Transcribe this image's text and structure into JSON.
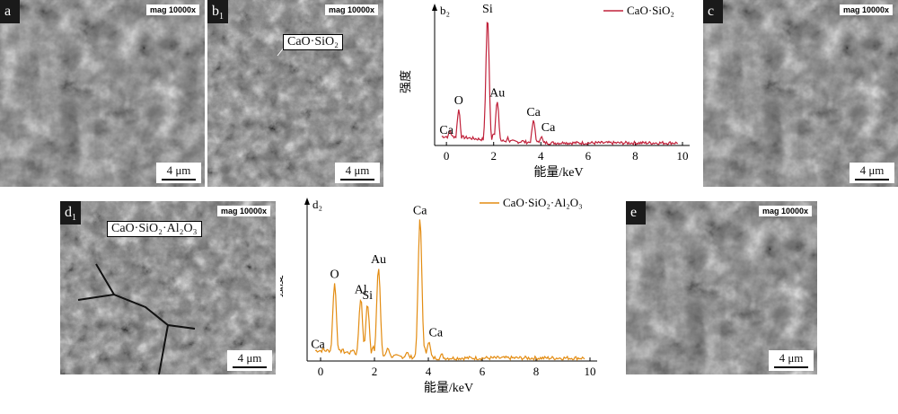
{
  "panels": {
    "a": {
      "label": "a",
      "mag": "mag 10000x",
      "scale": "4 μm"
    },
    "b1": {
      "label": "b",
      "label_sub": "1",
      "mag": "mag 10000x",
      "scale": "4 μm",
      "annotation": "CaO·SiO₂"
    },
    "c": {
      "label": "c",
      "mag": "mag 10000x",
      "scale": "4 μm"
    },
    "d1": {
      "label": "d",
      "label_sub": "1",
      "mag": "mag 10000x",
      "scale": "4 μm",
      "annotation": "CaO·SiO₂·Al₂O₃"
    },
    "e": {
      "label": "e",
      "mag": "mag 10000x",
      "scale": "4 μm"
    }
  },
  "chart_data": [
    {
      "type": "line",
      "panel_label": "b₂",
      "xlabel": "能量/keV",
      "ylabel": "强度",
      "xlim": [
        -0.5,
        10
      ],
      "xticks": [
        "0",
        "2",
        "4",
        "6",
        "8",
        "10"
      ],
      "legend": "CaO·SiO₂",
      "legend_position": "top-right",
      "color": "#c0213a",
      "series": [
        {
          "values": [
            [
              0.0,
              0.05
            ],
            [
              0.15,
              0.12
            ],
            [
              0.25,
              0.06
            ],
            [
              0.52,
              0.28
            ],
            [
              0.8,
              0.06
            ],
            [
              1.2,
              0.05
            ],
            [
              1.74,
              1.0
            ],
            [
              2.0,
              0.1
            ],
            [
              2.15,
              0.34
            ],
            [
              2.6,
              0.06
            ],
            [
              3.2,
              0.04
            ],
            [
              3.69,
              0.19
            ],
            [
              4.01,
              0.07
            ],
            [
              5.0,
              0.03
            ],
            [
              7.0,
              0.02
            ],
            [
              9.8,
              0.01
            ]
          ]
        }
      ],
      "peak_labels": [
        {
          "text": "Ca",
          "x": 0.0
        },
        {
          "text": "O",
          "x": 0.52
        },
        {
          "text": "Si",
          "x": 1.74
        },
        {
          "text": "Au",
          "x": 2.15
        },
        {
          "text": "Ca",
          "x": 3.69
        },
        {
          "text": "Ca",
          "x": 4.01
        }
      ]
    },
    {
      "type": "line",
      "panel_label": "d₂",
      "xlabel": "能量/keV",
      "ylabel": "强度",
      "xlim": [
        -0.5,
        10
      ],
      "xticks": [
        "0",
        "2",
        "4",
        "6",
        "8",
        "10"
      ],
      "legend": "CaO·SiO₂·Al₂O₃",
      "legend_position": "top-right",
      "color": "#e38c12",
      "series": [
        {
          "values": [
            [
              -0.1,
              0.05
            ],
            [
              0.1,
              0.08
            ],
            [
              0.3,
              0.05
            ],
            [
              0.52,
              0.52
            ],
            [
              0.8,
              0.08
            ],
            [
              1.2,
              0.08
            ],
            [
              1.49,
              0.42
            ],
            [
              1.6,
              0.12
            ],
            [
              1.74,
              0.38
            ],
            [
              1.95,
              0.1
            ],
            [
              2.15,
              0.62
            ],
            [
              2.5,
              0.09
            ],
            [
              3.2,
              0.06
            ],
            [
              3.69,
              0.95
            ],
            [
              3.85,
              0.08
            ],
            [
              4.01,
              0.13
            ],
            [
              4.5,
              0.04
            ],
            [
              6.0,
              0.02
            ],
            [
              9.8,
              0.01
            ]
          ]
        }
      ],
      "peak_labels": [
        {
          "text": "Ca",
          "x": -0.1
        },
        {
          "text": "O",
          "x": 0.52
        },
        {
          "text": "Al",
          "x": 1.49
        },
        {
          "text": "Si",
          "x": 1.74
        },
        {
          "text": "Au",
          "x": 2.15
        },
        {
          "text": "Ca",
          "x": 3.69
        },
        {
          "text": "Ca",
          "x": 4.01
        }
      ]
    }
  ]
}
